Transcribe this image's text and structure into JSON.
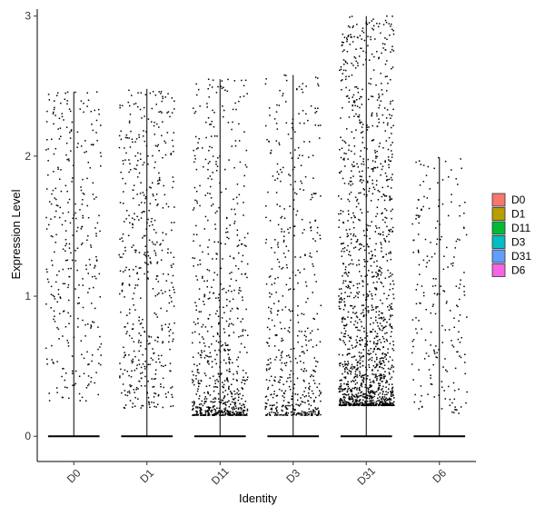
{
  "chart_data": {
    "type": "scatter",
    "subtype": "violin-jitter",
    "title": "",
    "xlabel": "Identity",
    "ylabel": "Expression Level",
    "ylim": [
      -0.18,
      3.05
    ],
    "yticks": [
      0,
      1,
      2,
      3
    ],
    "grid": false,
    "legend_position": "right",
    "categories": [
      "D0",
      "D1",
      "D11",
      "D3",
      "D31",
      "D6"
    ],
    "series": [
      {
        "name": "D0",
        "color": "#F8766D",
        "max": 2.46,
        "zero_fraction": 0.9,
        "point_count": 330,
        "expr_range": [
          0.25,
          2.46
        ],
        "bias": 1.0
      },
      {
        "name": "D1",
        "color": "#B79F00",
        "max": 2.48,
        "zero_fraction": 0.85,
        "point_count": 500,
        "expr_range": [
          0.2,
          2.48
        ],
        "bias": 1.3
      },
      {
        "name": "D11",
        "color": "#00BA38",
        "max": 2.55,
        "zero_fraction": 0.75,
        "point_count": 750,
        "expr_range": [
          0.15,
          2.55
        ],
        "bias": 2.6
      },
      {
        "name": "D3",
        "color": "#00BFC4",
        "max": 2.58,
        "zero_fraction": 0.8,
        "point_count": 550,
        "expr_range": [
          0.15,
          2.58
        ],
        "bias": 2.3
      },
      {
        "name": "D31",
        "color": "#619CFF",
        "max": 3.0,
        "zero_fraction": 0.55,
        "point_count": 1500,
        "expr_range": [
          0.22,
          3.0
        ],
        "bias": 2.4
      },
      {
        "name": "D6",
        "color": "#F564E3",
        "max": 1.99,
        "zero_fraction": 0.88,
        "point_count": 220,
        "expr_range": [
          0.15,
          1.99
        ],
        "bias": 1.3
      }
    ]
  }
}
